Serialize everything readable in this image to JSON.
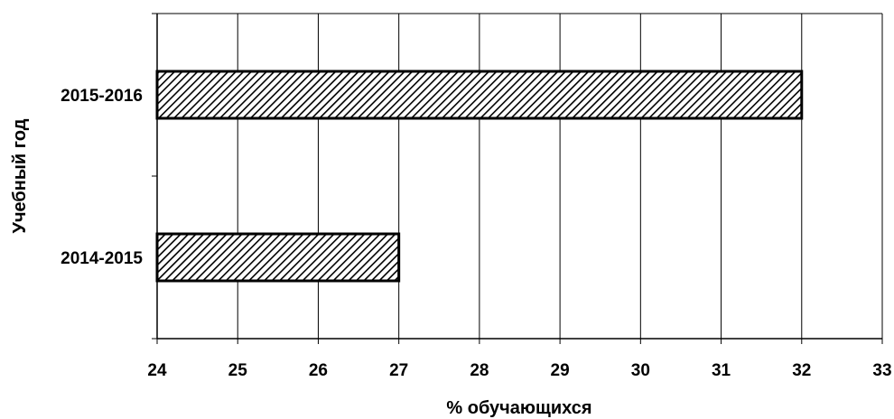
{
  "chart_data": {
    "type": "bar",
    "orientation": "horizontal",
    "title": "",
    "xlabel": "% обучающихся",
    "ylabel": "Учебный год",
    "categories": [
      "2014-2015",
      "2015-2016"
    ],
    "values": [
      27,
      32
    ],
    "xlim": [
      24,
      33
    ],
    "xticks": [
      24,
      25,
      26,
      27,
      28,
      29,
      30,
      31,
      32,
      33
    ],
    "grid": "vertical",
    "legend": "none",
    "bar_fill": "diagonal-hatch",
    "colors": {
      "bar_stroke": "#000000",
      "hatch": "#000000",
      "grid": "#000000",
      "background": "#ffffff"
    }
  }
}
